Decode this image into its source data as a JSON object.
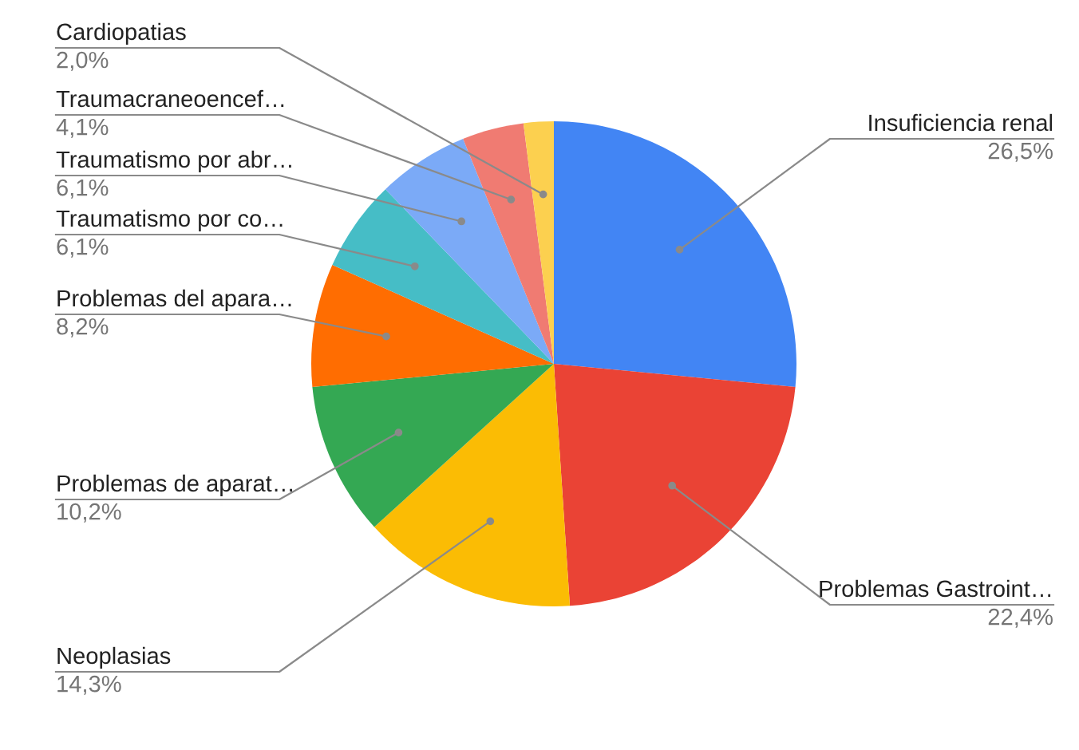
{
  "chart_data": {
    "type": "pie",
    "categories": [
      "Insuficiencia renal",
      "Problemas Gastroint…",
      "Neoplasias",
      "Problemas de aparat…",
      "Problemas del apara…",
      "Traumatismo por co…",
      "Traumatismo por abr…",
      "Traumacraneoencef…",
      "Cardiopatias"
    ],
    "values": [
      26.5,
      22.4,
      14.3,
      10.2,
      8.2,
      6.1,
      6.1,
      4.1,
      2.0
    ],
    "value_labels": [
      "26,5%",
      "22,4%",
      "14,3%",
      "10,2%",
      "8,2%",
      "6,1%",
      "6,1%",
      "4,1%",
      "2,0%"
    ],
    "colors": [
      "#4285f4",
      "#ea4335",
      "#fbbc04",
      "#34a853",
      "#ff6d01",
      "#46bdc6",
      "#7baaf7",
      "#f07b72",
      "#fcd04f"
    ]
  }
}
